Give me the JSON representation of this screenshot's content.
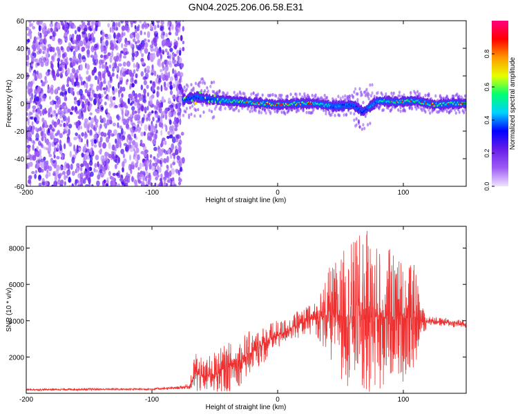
{
  "figure_title": "GN04.2025.206.06.58.E31",
  "colorbar": {
    "label": "Normalized spectral amplitude",
    "ticks": [
      "0.0",
      "0.2",
      "0.4",
      "0.6",
      "0.8"
    ],
    "tick_values": [
      0.0,
      0.2,
      0.4,
      0.6,
      0.8
    ],
    "range": [
      0,
      1
    ],
    "colors": [
      "#f0e2ff",
      "#9d5cf5",
      "#6a1ee8",
      "#0000ff",
      "#00d2ff",
      "#00ff70",
      "#e8ff00",
      "#ff9900",
      "#ff0000",
      "#ff0080"
    ]
  },
  "chart_data": [
    {
      "type": "heatmap",
      "xlabel": "Height of straight line (km)",
      "ylabel": "Frequency (Hz)",
      "xlim": [
        -200,
        150
      ],
      "ylim": [
        -60,
        60
      ],
      "x_ticks": [
        -200,
        -100,
        0,
        100
      ],
      "y_ticks": [
        -60,
        -40,
        -20,
        0,
        20,
        40,
        60
      ],
      "description_values": {
        "noise_region_x": [
          -200,
          -75
        ],
        "signal_region_x": [
          -75,
          150
        ],
        "signal_center_frequency": 0,
        "ridge_samples": [
          {
            "x": -72,
            "f": 3,
            "amp": 0.45
          },
          {
            "x": -65,
            "f": 5,
            "amp": 0.55
          },
          {
            "x": -55,
            "f": 3,
            "amp": 0.5
          },
          {
            "x": -40,
            "f": 2,
            "amp": 0.75
          },
          {
            "x": -25,
            "f": 1,
            "amp": 0.9
          },
          {
            "x": -10,
            "f": 0,
            "amp": 0.95
          },
          {
            "x": 0,
            "f": -1,
            "amp": 1.0
          },
          {
            "x": 15,
            "f": 0,
            "amp": 0.95
          },
          {
            "x": 30,
            "f": 0,
            "amp": 0.85
          },
          {
            "x": 45,
            "f": -2,
            "amp": 0.6
          },
          {
            "x": 60,
            "f": -1,
            "amp": 0.55
          },
          {
            "x": 68,
            "f": -6,
            "amp": 0.45
          },
          {
            "x": 80,
            "f": 2,
            "amp": 0.7
          },
          {
            "x": 95,
            "f": 1,
            "amp": 0.85
          },
          {
            "x": 110,
            "f": 2,
            "amp": 0.8
          },
          {
            "x": 125,
            "f": -1,
            "amp": 0.9
          },
          {
            "x": 140,
            "f": 0,
            "amp": 0.9
          }
        ]
      }
    },
    {
      "type": "line",
      "xlabel": "Height of straight line (km)",
      "ylabel": "SNR (10 * v/v)",
      "xlim": [
        -200,
        150
      ],
      "ylim": [
        0,
        9200
      ],
      "x_ticks": [
        -200,
        -100,
        0,
        100
      ],
      "y_ticks": [
        2000,
        4000,
        6000,
        8000
      ],
      "series": [
        {
          "color": "#ee3030",
          "envelope": {
            "x": [
              -200,
              -150,
              -100,
              -80,
              -70,
              -65,
              -60,
              -50,
              -40,
              -30,
              -20,
              -10,
              0,
              10,
              20,
              30,
              40,
              50,
              60,
              70,
              80,
              90,
              100,
              110,
              115,
              120,
              135,
              150
            ],
            "mean": [
              200,
              220,
              230,
              300,
              380,
              1200,
              900,
              1100,
              1400,
              1800,
              2300,
              2800,
              3200,
              3600,
              3900,
              4200,
              4300,
              4300,
              4300,
              4300,
              4200,
              4200,
              4100,
              4200,
              4000,
              4000,
              3900,
              3800
            ],
            "spread": [
              60,
              70,
              70,
              80,
              150,
              1500,
              900,
              1200,
              1400,
              1400,
              1200,
              1100,
              800,
              700,
              800,
              900,
              2500,
              3500,
              4200,
              4800,
              4200,
              3800,
              3500,
              2800,
              800,
              250,
              250,
              250
            ]
          }
        }
      ]
    }
  ]
}
